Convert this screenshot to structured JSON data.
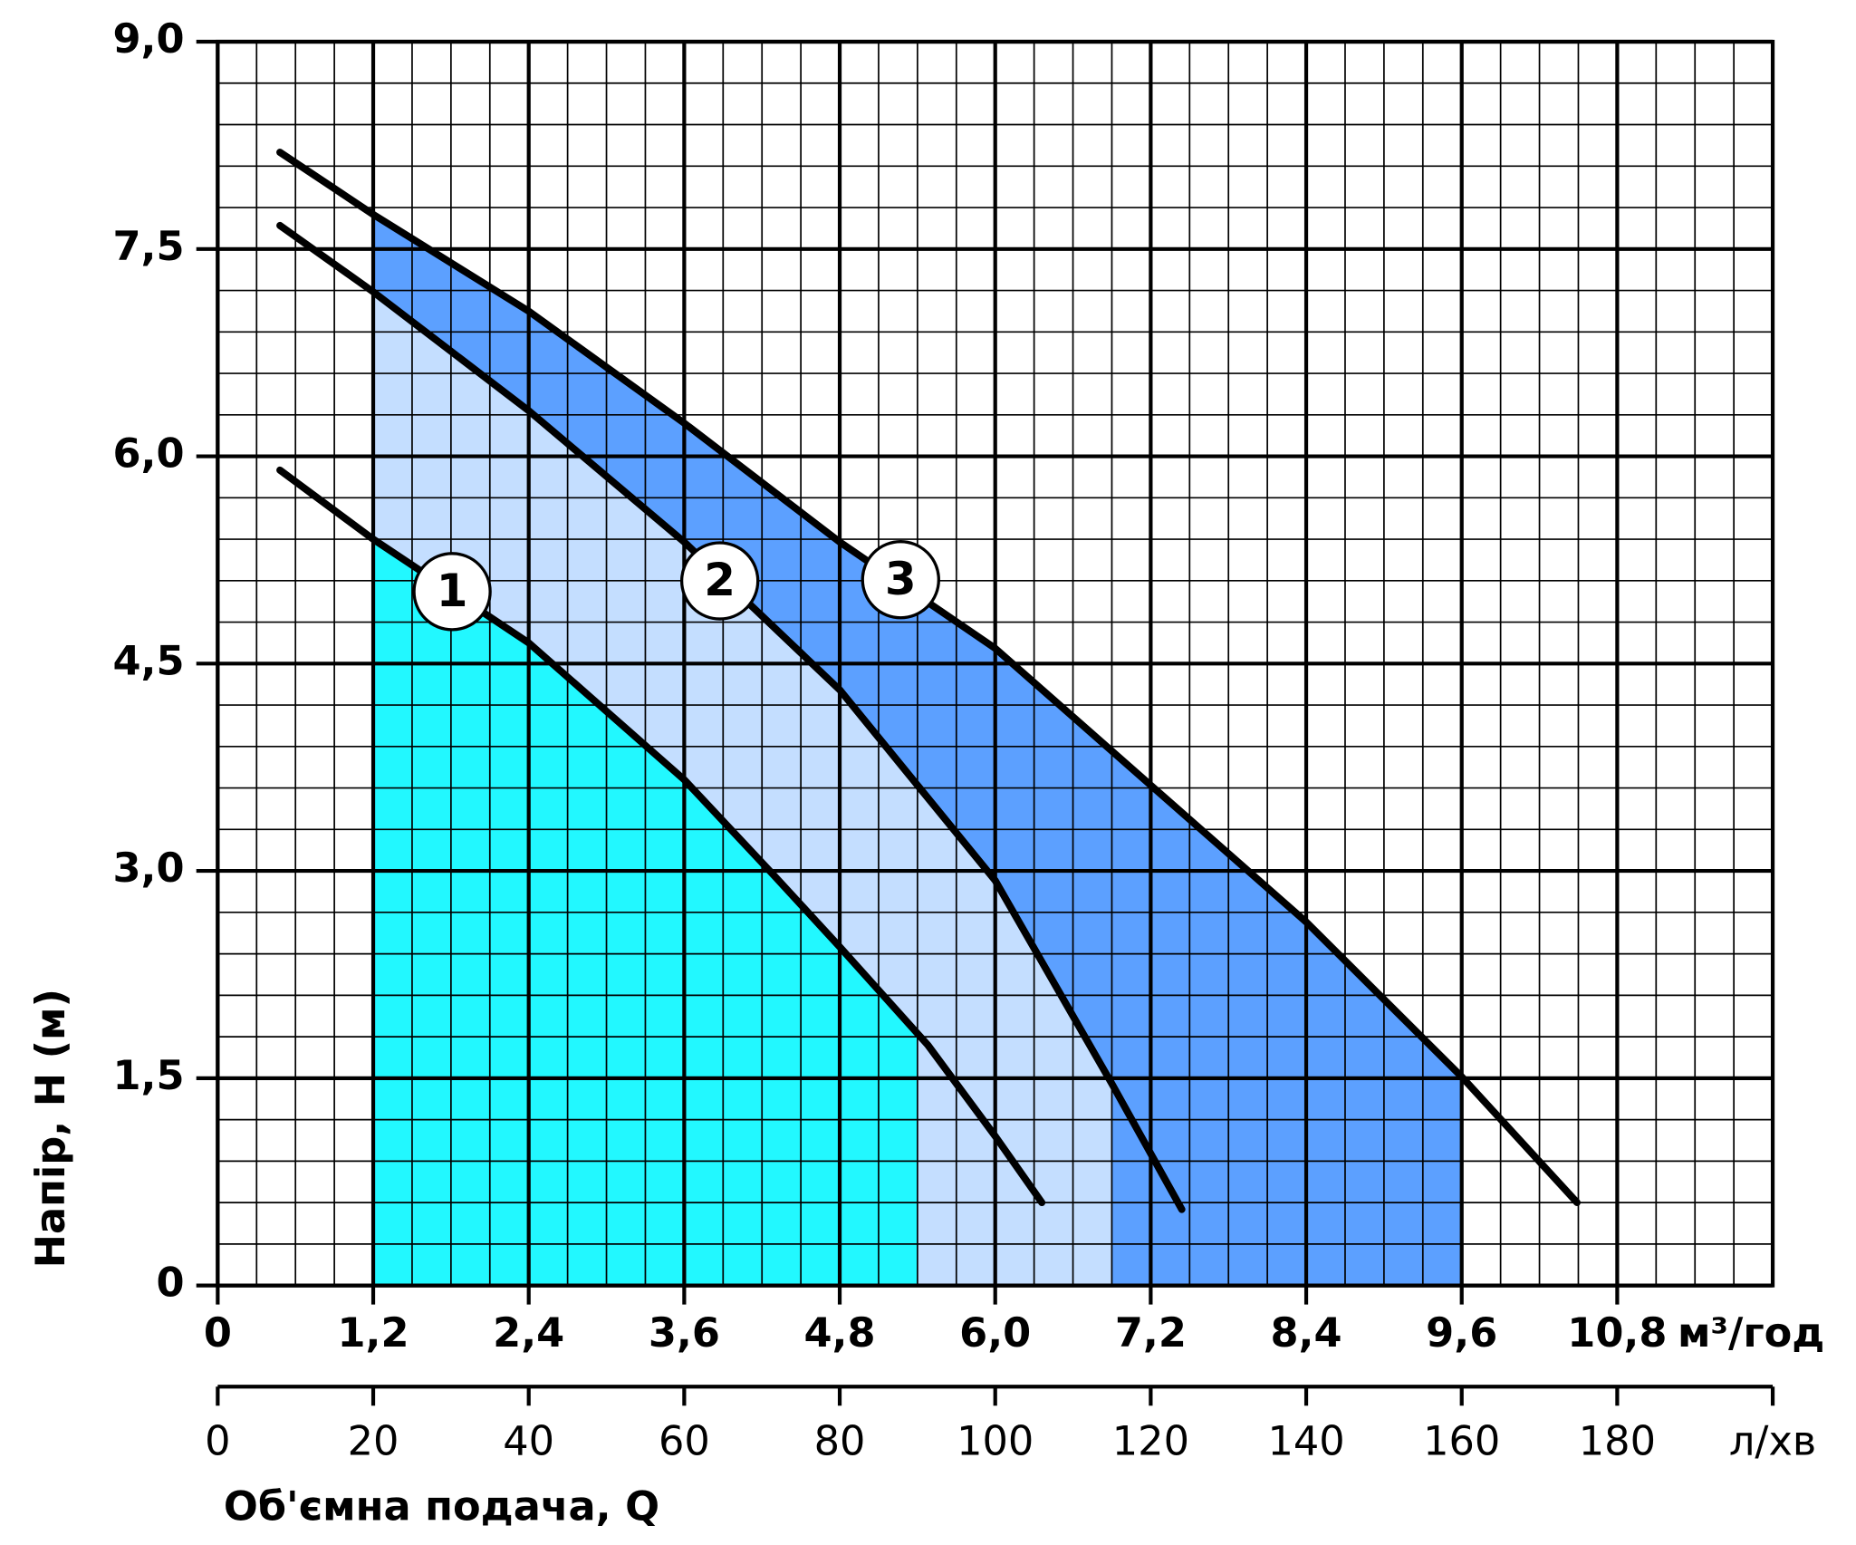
{
  "chart_data": {
    "type": "line",
    "y_title": "Напір, H (м)",
    "x_title": "Об'ємна подача, Q",
    "x_unit": "м³/год",
    "x2_unit": "л/хв",
    "xlim": [
      0,
      12
    ],
    "xticks": [
      0,
      {
        "value": 1.2,
        "label": "1,2"
      },
      {
        "value": 2.4,
        "label": "2,4"
      },
      {
        "value": 3.6,
        "label": "3,6"
      },
      {
        "value": 4.8,
        "label": "4,8"
      },
      {
        "value": 6.0,
        "label": "6,0"
      },
      {
        "value": 7.2,
        "label": "7,2"
      },
      {
        "value": 8.4,
        "label": "8,4"
      },
      {
        "value": 9.6,
        "label": "9,6"
      },
      {
        "value": 10.8,
        "label": "10,8"
      }
    ],
    "x2lim": [
      0,
      200
    ],
    "x2ticks": [
      0,
      20,
      40,
      60,
      80,
      100,
      120,
      140,
      160,
      180
    ],
    "ylim": [
      0,
      9
    ],
    "yticks": [
      0,
      {
        "value": 1.5,
        "label": "1,5"
      },
      {
        "value": 3.0,
        "label": "3,0"
      },
      {
        "value": 4.5,
        "label": "4,5"
      },
      {
        "value": 6.0,
        "label": "6,0"
      },
      {
        "value": 7.5,
        "label": "7,5"
      },
      {
        "value": 9.0,
        "label": "9,0"
      }
    ],
    "grid": true,
    "minor_grid": true,
    "line_color": "#000000",
    "series": [
      {
        "name": "1",
        "color": "#22f8ff",
        "fill_range": [
          1.2,
          5.4
        ],
        "x": [
          0.48,
          1.2,
          2.4,
          3.6,
          4.29,
          4.8,
          5.48,
          6.0,
          6.36
        ],
        "values": [
          5.9,
          5.4,
          4.65,
          3.66,
          2.97,
          2.45,
          1.74,
          1.08,
          0.6
        ]
      },
      {
        "name": "2",
        "color": "#c4deff",
        "fill_range": [
          1.2,
          6.9
        ],
        "x": [
          0.48,
          1.2,
          2.4,
          3.6,
          4.8,
          6.0,
          6.9,
          7.44
        ],
        "values": [
          7.67,
          7.19,
          6.33,
          5.38,
          4.31,
          2.93,
          1.46,
          0.55
        ]
      },
      {
        "name": "3",
        "color": "#5ca0ff",
        "fill_range": [
          1.2,
          9.6
        ],
        "x": [
          0.48,
          1.2,
          2.4,
          3.6,
          4.8,
          6.0,
          7.2,
          8.4,
          9.6,
          10.49
        ],
        "values": [
          8.2,
          7.75,
          7.05,
          6.24,
          5.38,
          4.61,
          3.62,
          2.63,
          1.51,
          0.6
        ]
      }
    ]
  }
}
